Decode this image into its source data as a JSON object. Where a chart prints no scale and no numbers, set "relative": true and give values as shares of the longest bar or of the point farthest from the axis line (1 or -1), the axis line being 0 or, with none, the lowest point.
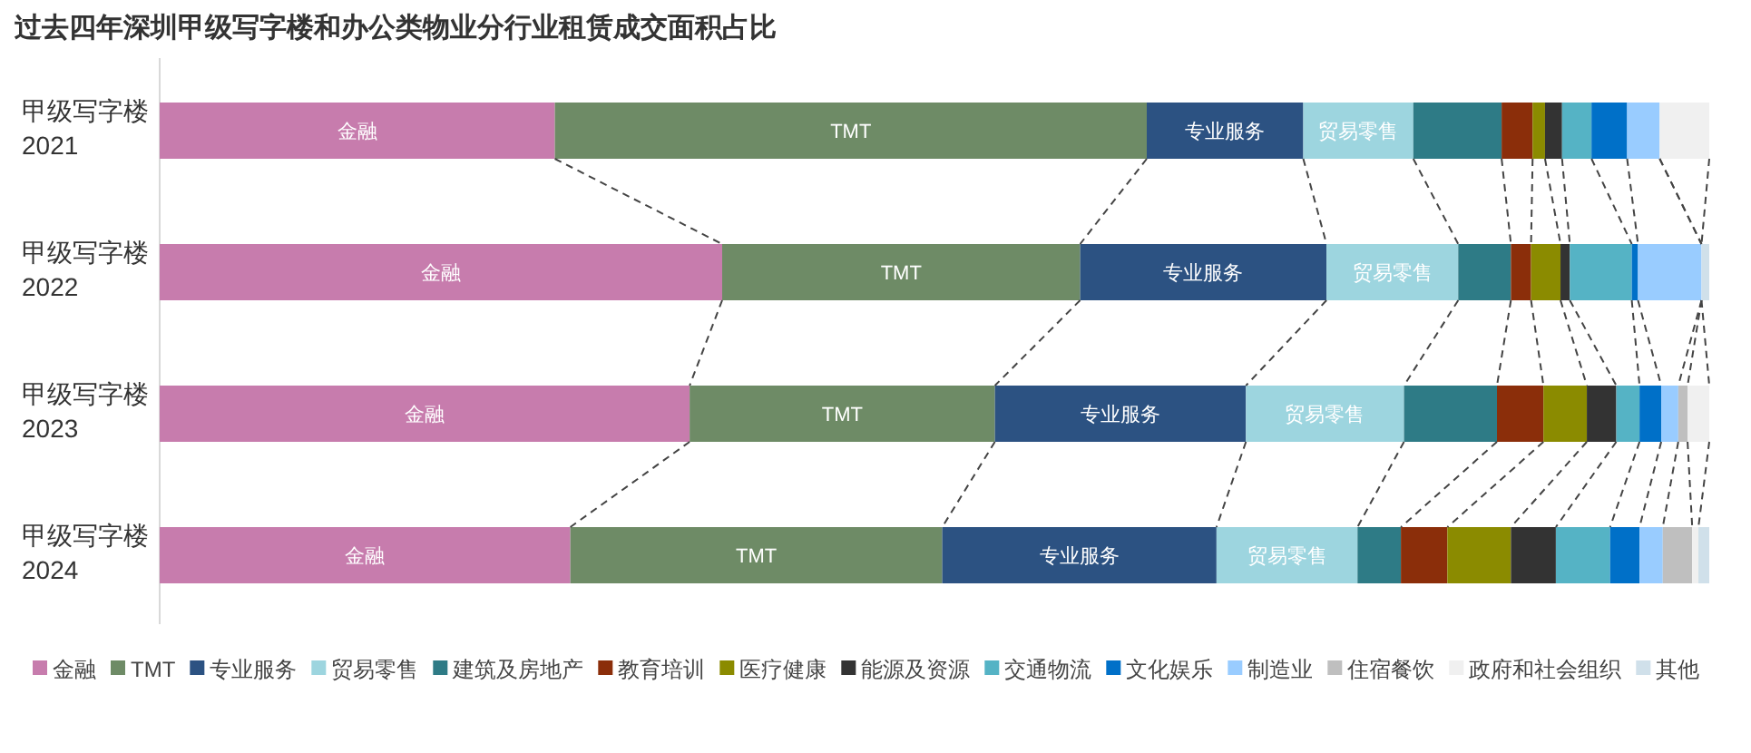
{
  "chart_data": {
    "type": "bar",
    "orientation": "horizontal",
    "stacked": true,
    "relative": true,
    "legend": "bottom",
    "title": "过去四年深圳甲级写字楼和办公类物业分行业租赁成交面积占比",
    "categories": [
      "甲级写字楼 2021",
      "甲级写字楼 2022",
      "甲级写字楼 2023",
      "甲级写字楼 2024"
    ],
    "series": [
      {
        "name": "金融",
        "color": "#c77cad",
        "values": [
          0.255,
          0.363,
          0.342,
          0.265
        ]
      },
      {
        "name": "TMT",
        "color": "#6e8b66",
        "values": [
          0.382,
          0.231,
          0.197,
          0.24
        ]
      },
      {
        "name": "专业服务",
        "color": "#2c5282",
        "values": [
          0.101,
          0.159,
          0.162,
          0.177
        ]
      },
      {
        "name": "贸易零售",
        "color": "#9dd5df",
        "values": [
          0.071,
          0.085,
          0.102,
          0.091
        ]
      },
      {
        "name": "建筑及房地产",
        "color": "#2e7b86",
        "values": [
          0.057,
          0.034,
          0.06,
          0.028
        ]
      },
      {
        "name": "教育培训",
        "color": "#8b2e0a",
        "values": [
          0.02,
          0.013,
          0.03,
          0.03
        ]
      },
      {
        "name": "医疗健康",
        "color": "#8b8b00",
        "values": [
          0.008,
          0.019,
          0.028,
          0.041
        ]
      },
      {
        "name": "能源及资源",
        "color": "#333333",
        "values": [
          0.011,
          0.006,
          0.019,
          0.029
        ]
      },
      {
        "name": "交通物流",
        "color": "#55b3c5",
        "values": [
          0.019,
          0.04,
          0.015,
          0.035
        ]
      },
      {
        "name": "文化娱乐",
        "color": "#0070c8",
        "values": [
          0.023,
          0.004,
          0.014,
          0.019
        ]
      },
      {
        "name": "制造业",
        "color": "#99ccff",
        "values": [
          0.021,
          0.041,
          0.011,
          0.015
        ]
      },
      {
        "name": "住宿餐饮",
        "color": "#bfbfbf",
        "values": [
          null,
          null,
          0.006,
          0.019
        ]
      },
      {
        "name": "政府和社会组织",
        "color": "#f0f0f0",
        "values": [
          0.032,
          null,
          0.014,
          0.004
        ]
      },
      {
        "name": "其他",
        "color": "#d0e0ea",
        "values": [
          null,
          0.005,
          null,
          0.007
        ]
      }
    ]
  }
}
